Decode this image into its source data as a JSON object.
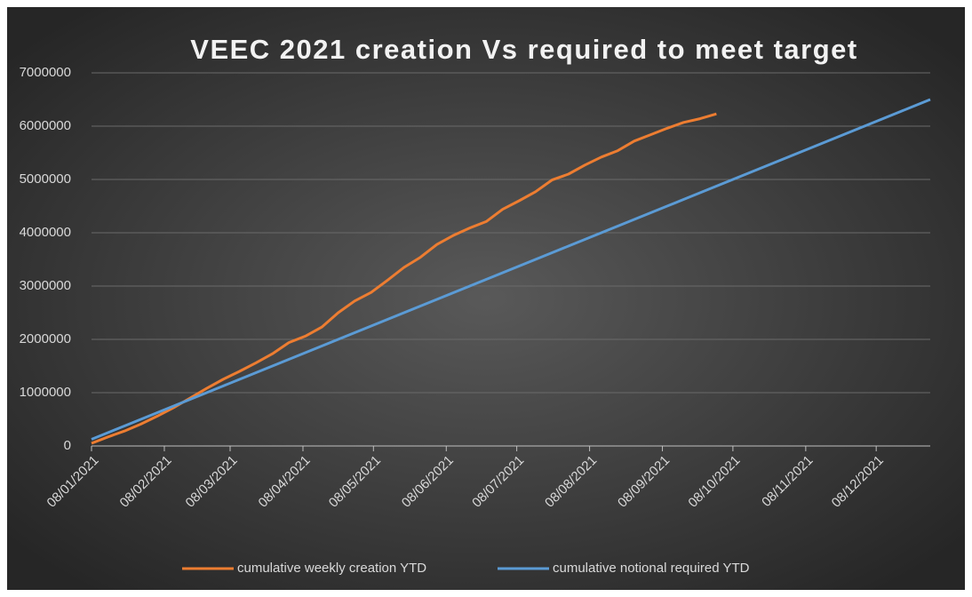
{
  "chart_data": {
    "type": "line",
    "title": "VEEC 2021 creation Vs required to meet target",
    "x": [
      "08/01/2021",
      "15/01/2021",
      "22/01/2021",
      "29/01/2021",
      "05/02/2021",
      "12/02/2021",
      "19/02/2021",
      "26/02/2021",
      "05/03/2021",
      "12/03/2021",
      "19/03/2021",
      "26/03/2021",
      "02/04/2021",
      "09/04/2021",
      "16/04/2021",
      "23/04/2021",
      "30/04/2021",
      "07/05/2021",
      "14/05/2021",
      "21/05/2021",
      "28/05/2021",
      "04/06/2021",
      "11/06/2021",
      "18/06/2021",
      "25/06/2021",
      "02/07/2021",
      "09/07/2021",
      "16/07/2021",
      "23/07/2021",
      "30/07/2021",
      "06/08/2021",
      "13/08/2021",
      "20/08/2021",
      "27/08/2021",
      "03/09/2021",
      "10/09/2021",
      "17/09/2021",
      "24/09/2021",
      "01/10/2021",
      "08/10/2021",
      "15/10/2021",
      "22/10/2021",
      "29/10/2021",
      "05/11/2021",
      "12/11/2021",
      "19/11/2021",
      "26/11/2021",
      "03/12/2021",
      "10/12/2021",
      "17/12/2021",
      "24/12/2021",
      "31/12/2021"
    ],
    "series": [
      {
        "name": "cumulative weekly creation YTD",
        "color": "#ed7d31",
        "values": [
          50000,
          170000,
          280000,
          410000,
          560000,
          720000,
          900000,
          1080000,
          1250000,
          1400000,
          1560000,
          1730000,
          1940000,
          2060000,
          2230000,
          2500000,
          2720000,
          2880000,
          3110000,
          3350000,
          3540000,
          3780000,
          3950000,
          4090000,
          4210000,
          4440000,
          4600000,
          4770000,
          4990000,
          5100000,
          5270000,
          5420000,
          5540000,
          5720000,
          5840000,
          5960000,
          6070000,
          6140000,
          6230000,
          null,
          null,
          null,
          null,
          null,
          null,
          null,
          null,
          null,
          null,
          null,
          null,
          null
        ]
      },
      {
        "name": "cumulative notional required YTD",
        "color": "#5b9bd5",
        "values": [
          125000,
          250000,
          375000,
          500000,
          625000,
          750000,
          875000,
          1000000,
          1125000,
          1250000,
          1375000,
          1500000,
          1625000,
          1750000,
          1875000,
          2000000,
          2125000,
          2250000,
          2375000,
          2500000,
          2625000,
          2750000,
          2875000,
          3000000,
          3125000,
          3250000,
          3375000,
          3500000,
          3625000,
          3750000,
          3875000,
          4000000,
          4125000,
          4250000,
          4375000,
          4500000,
          4625000,
          4750000,
          4875000,
          5000000,
          5125000,
          5250000,
          5375000,
          5500000,
          5625000,
          5750000,
          5875000,
          6000000,
          6125000,
          6250000,
          6375000,
          6500000
        ]
      }
    ],
    "xlim": [
      "08/01/2021",
      "31/12/2021"
    ],
    "xticks": [
      "08/01/2021",
      "08/02/2021",
      "08/03/2021",
      "08/04/2021",
      "08/05/2021",
      "08/06/2021",
      "08/07/2021",
      "08/08/2021",
      "08/09/2021",
      "08/10/2021",
      "08/11/2021",
      "08/12/2021"
    ],
    "ylim": [
      0,
      7000000
    ],
    "yticks": [
      0,
      1000000,
      2000000,
      3000000,
      4000000,
      5000000,
      6000000,
      7000000
    ],
    "grid": true,
    "legend": "bottom"
  }
}
